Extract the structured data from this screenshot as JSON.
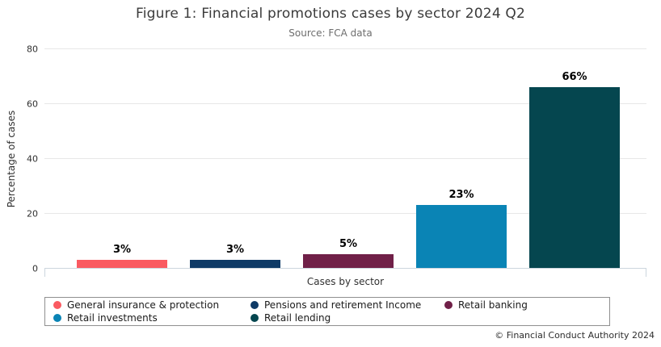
{
  "figure": {
    "title": "Figure 1: Financial promotions cases by sector 2024 Q2",
    "subtitle": "Source: FCA data",
    "footer": "© Financial Conduct Authority 2024"
  },
  "chart_data": {
    "type": "bar",
    "title": "Figure 1: Financial promotions cases by sector 2024 Q2",
    "subtitle": "Source: FCA data",
    "categories": [
      "General insurance & protection",
      "Pensions and retirement Income",
      "Retail banking",
      "Retail investments",
      "Retail lending"
    ],
    "values": [
      3,
      3,
      5,
      23,
      66
    ],
    "value_labels": [
      "3%",
      "3%",
      "5%",
      "23%",
      "66%"
    ],
    "colors": [
      "#fa5a61",
      "#0e3a66",
      "#702048",
      "#0a84b5",
      "#05464f"
    ],
    "xlabel": "Cases by sector",
    "ylabel": "Percentage of cases",
    "ylim": [
      0,
      80
    ],
    "yticks": [
      0,
      20,
      40,
      60,
      80
    ],
    "grid": true,
    "legend_position": "bottom"
  },
  "legend": {
    "items": [
      {
        "label": "General insurance & protection",
        "color": "#fa5a61"
      },
      {
        "label": "Pensions and retirement Income",
        "color": "#0e3a66"
      },
      {
        "label": "Retail banking",
        "color": "#702048"
      },
      {
        "label": "Retail investments",
        "color": "#0a84b5"
      },
      {
        "label": "Retail lending",
        "color": "#05464f"
      }
    ]
  }
}
